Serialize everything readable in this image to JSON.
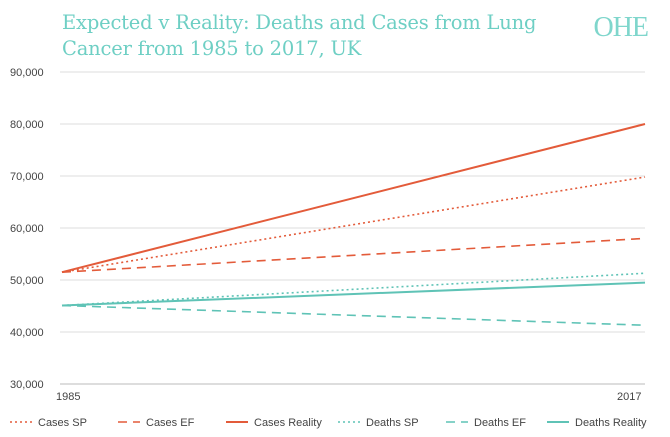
{
  "title": "Expected v Reality: Deaths and Cases from Lung Cancer from 1985 to 2017, UK",
  "logo": "OHE",
  "colors": {
    "cases": "#e35b3a",
    "deaths": "#5fc3b6",
    "title": "#6ecfc4",
    "grid": "#dcdcdc"
  },
  "chart_data": {
    "type": "line",
    "title": "Expected v Reality: Deaths and Cases from Lung Cancer from 1985 to 2017, UK",
    "xlabel": "",
    "ylabel": "",
    "x": [
      1985,
      2017
    ],
    "xticks": [
      "1985",
      "2017"
    ],
    "ylim": [
      30000,
      90000
    ],
    "yticks": [
      "30,000",
      "40,000",
      "50,000",
      "60,000",
      "70,000",
      "80,000",
      "90,000"
    ],
    "grid": true,
    "legend_position": "bottom",
    "series": [
      {
        "name": "Cases SP",
        "values": [
          51500,
          69800
        ],
        "color": "#e35b3a",
        "style": "dotted"
      },
      {
        "name": "Cases EF",
        "values": [
          51500,
          58000
        ],
        "color": "#e35b3a",
        "style": "dashed"
      },
      {
        "name": "Cases Reality",
        "values": [
          51500,
          80000
        ],
        "color": "#e35b3a",
        "style": "solid"
      },
      {
        "name": "Deaths SP",
        "values": [
          45100,
          51300
        ],
        "color": "#5fc3b6",
        "style": "dotted"
      },
      {
        "name": "Deaths EF",
        "values": [
          45100,
          41300
        ],
        "color": "#5fc3b6",
        "style": "dashed"
      },
      {
        "name": "Deaths Reality",
        "values": [
          45100,
          49500
        ],
        "color": "#5fc3b6",
        "style": "solid"
      }
    ]
  }
}
